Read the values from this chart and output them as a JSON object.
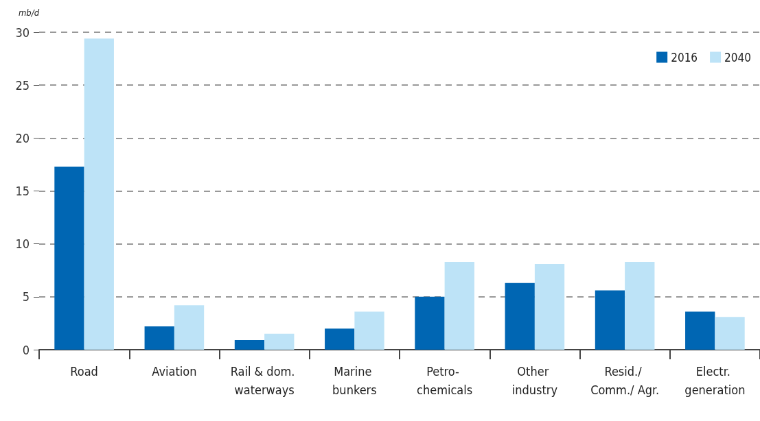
{
  "chart_data": {
    "type": "bar",
    "ylabel": "mb/d",
    "categories": [
      "Road",
      "Aviation",
      "Rail & dom. waterways",
      "Marine bunkers",
      "Petro- chemicals",
      "Other industry",
      "Resid./ Comm./ Agr.",
      "Electr. generation"
    ],
    "series": [
      {
        "name": "2016",
        "color": "#0066b3",
        "values": [
          17.3,
          2.2,
          0.9,
          2.0,
          5.0,
          6.3,
          5.6,
          3.6
        ]
      },
      {
        "name": "2040",
        "color": "#bde3f7",
        "values": [
          29.4,
          4.2,
          1.5,
          3.6,
          8.3,
          8.1,
          8.3,
          3.1
        ]
      }
    ],
    "ylim": [
      0,
      30
    ],
    "yticks": [
      0,
      5,
      10,
      15,
      20,
      25,
      30
    ],
    "grid": "y",
    "legend": "top right"
  }
}
